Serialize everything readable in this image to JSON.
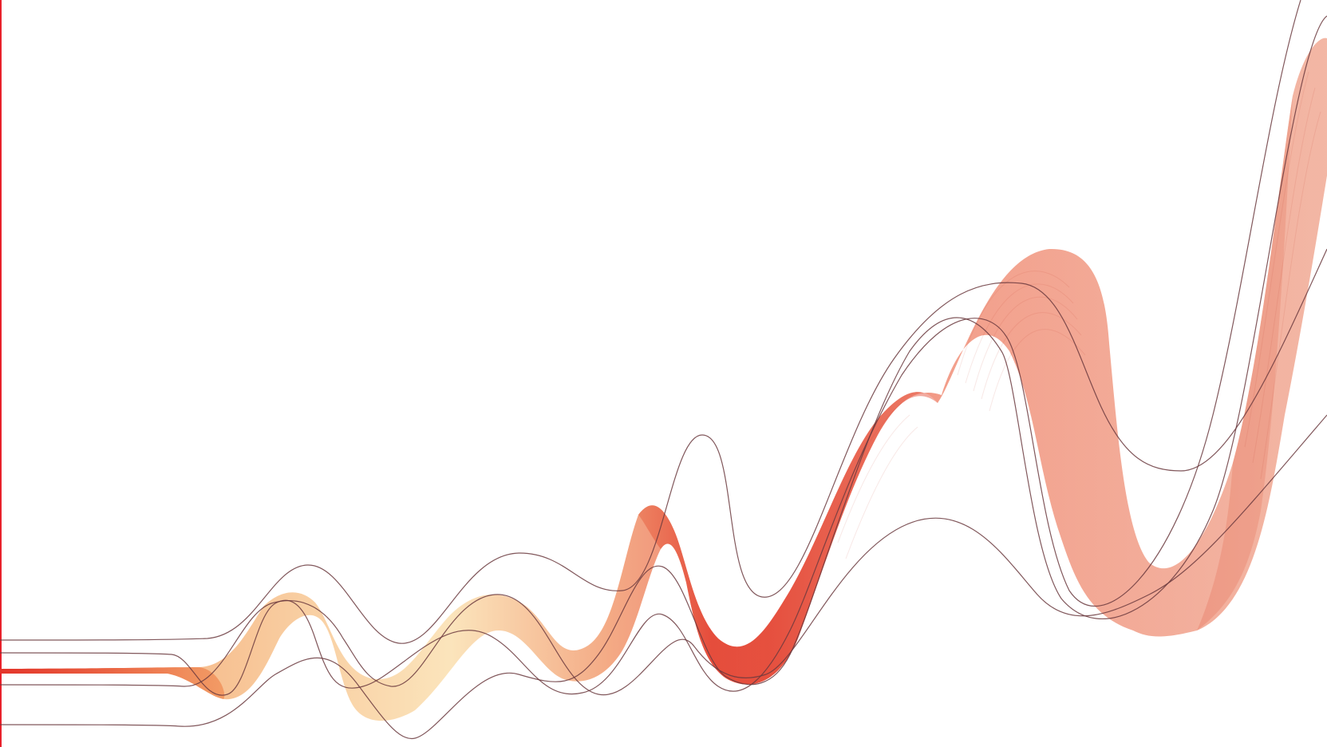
{
  "artwork": {
    "subject": "abstract-ribbon-wave",
    "colors": {
      "background": "#ffffff",
      "edge_line": "#e8212b",
      "ribbon_peach": "#f6b987",
      "ribbon_cream": "#fbe3b8",
      "ribbon_coral": "#ef8a72",
      "ribbon_red": "#e3342a",
      "ribbon_salmon": "#f2b3a0",
      "thin_line": "#6b3a3e"
    }
  }
}
